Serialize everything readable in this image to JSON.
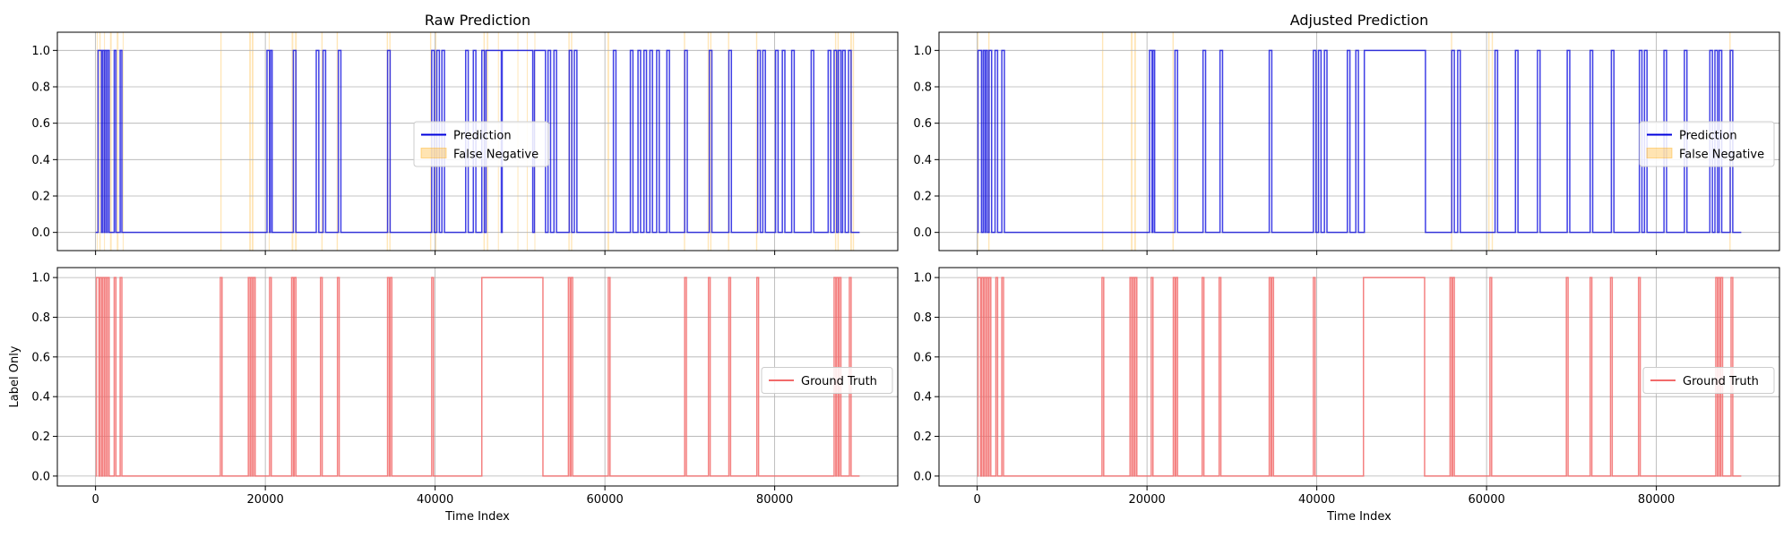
{
  "figure": {
    "x_label": "Time Index",
    "y_label": "Label Only"
  },
  "colors": {
    "prediction": "#0000dd",
    "ground_truth": "#f26b6b",
    "false_negative": "#ffa500",
    "grid": "#b0b0b0",
    "axes": "#000000"
  },
  "chart_data": [
    {
      "type": "line",
      "panel": "raw-prediction",
      "title": "Raw Prediction",
      "xlim": [
        -4500,
        94500
      ],
      "ylim": [
        -0.1,
        1.1
      ],
      "x_ticks": [
        0,
        20000,
        40000,
        60000,
        80000
      ],
      "x_tick_labels": [
        "0",
        "20000",
        "40000",
        "60000",
        "80000"
      ],
      "y_ticks": [
        0.0,
        0.2,
        0.4,
        0.6,
        0.8,
        1.0
      ],
      "y_tick_labels": [
        "0.0",
        "0.2",
        "0.4",
        "0.6",
        "0.8",
        "1.0"
      ],
      "grid": true,
      "legend_position": "center-right",
      "legend": [
        "Prediction",
        "False Negative"
      ],
      "series": [
        {
          "name": "Prediction",
          "segments": [
            [
              300,
              700
            ],
            [
              800,
              1000
            ],
            [
              1100,
              1300
            ],
            [
              1400,
              1600
            ],
            [
              2200,
              2400
            ],
            [
              2900,
              3100
            ],
            [
              20200,
              20500
            ],
            [
              20600,
              20800
            ],
            [
              23300,
              23600
            ],
            [
              26000,
              26300
            ],
            [
              26800,
              27100
            ],
            [
              28600,
              28900
            ],
            [
              34400,
              34700
            ],
            [
              39600,
              39900
            ],
            [
              40200,
              40500
            ],
            [
              40800,
              41100
            ],
            [
              43600,
              43900
            ],
            [
              44500,
              44800
            ],
            [
              45500,
              45800
            ],
            [
              46000,
              47800
            ],
            [
              47900,
              51500
            ],
            [
              51700,
              53000
            ],
            [
              53300,
              53600
            ],
            [
              54000,
              54300
            ],
            [
              55800,
              56100
            ],
            [
              56400,
              56700
            ],
            [
              61000,
              61300
            ],
            [
              63000,
              63300
            ],
            [
              63900,
              64200
            ],
            [
              64600,
              64900
            ],
            [
              65300,
              65600
            ],
            [
              66100,
              66400
            ],
            [
              67300,
              67600
            ],
            [
              69400,
              69700
            ],
            [
              72300,
              72600
            ],
            [
              74600,
              74900
            ],
            [
              78000,
              78300
            ],
            [
              78600,
              78900
            ],
            [
              80100,
              80400
            ],
            [
              80900,
              81200
            ],
            [
              82000,
              82300
            ],
            [
              84300,
              84600
            ],
            [
              86300,
              86600
            ],
            [
              87000,
              87300
            ],
            [
              87500,
              87800
            ],
            [
              88000,
              88300
            ],
            [
              88700,
              89000
            ]
          ],
          "x_end": 90000
        },
        {
          "name": "False Negative",
          "spans": [
            [
              150,
              250
            ],
            [
              450,
              600
            ],
            [
              1000,
              1100
            ],
            [
              1700,
              1900
            ],
            [
              2500,
              2700
            ],
            [
              3200,
              3300
            ],
            [
              14700,
              14850
            ],
            [
              18100,
              18300
            ],
            [
              18400,
              18600
            ],
            [
              20400,
              20500
            ],
            [
              23100,
              23300
            ],
            [
              23500,
              23700
            ],
            [
              26600,
              26750
            ],
            [
              28400,
              28550
            ],
            [
              34300,
              34450
            ],
            [
              34600,
              34750
            ],
            [
              39400,
              39550
            ],
            [
              40000,
              40150
            ],
            [
              45700,
              45850
            ],
            [
              46100,
              46250
            ],
            [
              47400,
              47500
            ],
            [
              49700,
              49800
            ],
            [
              50800,
              50900
            ],
            [
              51700,
              51800
            ],
            [
              55700,
              55850
            ],
            [
              56000,
              56150
            ],
            [
              60300,
              60500
            ],
            [
              69300,
              69450
            ],
            [
              72100,
              72250
            ],
            [
              72400,
              72550
            ],
            [
              74500,
              74650
            ],
            [
              77800,
              77950
            ],
            [
              87100,
              87250
            ],
            [
              87400,
              87550
            ],
            [
              88900,
              89100
            ],
            [
              89200,
              89350
            ]
          ]
        }
      ]
    },
    {
      "type": "line",
      "panel": "adjusted-prediction",
      "title": "Adjusted Prediction",
      "xlim": [
        -4500,
        94500
      ],
      "ylim": [
        -0.1,
        1.1
      ],
      "x_ticks": [
        0,
        20000,
        40000,
        60000,
        80000
      ],
      "x_tick_labels": [
        "0",
        "20000",
        "40000",
        "60000",
        "80000"
      ],
      "y_ticks": [
        0.0,
        0.2,
        0.4,
        0.6,
        0.8,
        1.0
      ],
      "y_tick_labels": [
        "0.0",
        "0.2",
        "0.4",
        "0.6",
        "0.8",
        "1.0"
      ],
      "grid": true,
      "legend_position": "center-right",
      "legend": [
        "Prediction",
        "False Negative"
      ],
      "series": [
        {
          "name": "Prediction",
          "segments": [
            [
              100,
              500
            ],
            [
              700,
              900
            ],
            [
              1000,
              1200
            ],
            [
              1400,
              1700
            ],
            [
              2100,
              2400
            ],
            [
              2900,
              3200
            ],
            [
              20300,
              20600
            ],
            [
              20700,
              20900
            ],
            [
              23300,
              23600
            ],
            [
              26600,
              26900
            ],
            [
              28600,
              28900
            ],
            [
              34400,
              34700
            ],
            [
              39600,
              39900
            ],
            [
              40200,
              40500
            ],
            [
              40900,
              41200
            ],
            [
              43600,
              43900
            ],
            [
              44600,
              44900
            ],
            [
              45600,
              52800
            ],
            [
              55900,
              56200
            ],
            [
              56600,
              56900
            ],
            [
              61000,
              61300
            ],
            [
              63400,
              63700
            ],
            [
              66000,
              66300
            ],
            [
              69500,
              69800
            ],
            [
              72200,
              72500
            ],
            [
              74700,
              75000
            ],
            [
              78000,
              78300
            ],
            [
              78600,
              78900
            ],
            [
              80900,
              81200
            ],
            [
              83300,
              83600
            ],
            [
              86300,
              86600
            ],
            [
              86900,
              87200
            ],
            [
              87400,
              87700
            ],
            [
              88700,
              89000
            ]
          ],
          "x_end": 90000
        },
        {
          "name": "False Negative",
          "spans": [
            [
              0,
              150
            ],
            [
              1300,
              1450
            ],
            [
              14700,
              14850
            ],
            [
              18100,
              18300
            ],
            [
              18500,
              18700
            ],
            [
              23000,
              23150
            ],
            [
              55800,
              55950
            ],
            [
              60200,
              60350
            ],
            [
              60600,
              60750
            ],
            [
              88600,
              88750
            ]
          ]
        }
      ]
    },
    {
      "type": "line",
      "panel": "ground-truth-left",
      "title": "",
      "ylabel": "Label Only",
      "xlabel": "Time Index",
      "xlim": [
        -4500,
        94500
      ],
      "ylim": [
        -0.05,
        1.05
      ],
      "x_ticks": [
        0,
        20000,
        40000,
        60000,
        80000
      ],
      "x_tick_labels": [
        "0",
        "20000",
        "40000",
        "60000",
        "80000"
      ],
      "y_ticks": [
        0.0,
        0.2,
        0.4,
        0.6,
        0.8,
        1.0
      ],
      "y_tick_labels": [
        "0.0",
        "0.2",
        "0.4",
        "0.6",
        "0.8",
        "1.0"
      ],
      "grid": true,
      "legend_position": "center-right",
      "legend": [
        "Ground Truth"
      ],
      "series": [
        {
          "name": "Ground Truth",
          "segments": [
            [
              100,
              400
            ],
            [
              500,
              700
            ],
            [
              800,
              1000
            ],
            [
              1100,
              1300
            ],
            [
              1400,
              1600
            ],
            [
              2200,
              2400
            ],
            [
              2900,
              3100
            ],
            [
              14700,
              14900
            ],
            [
              18000,
              18200
            ],
            [
              18300,
              18500
            ],
            [
              18600,
              18800
            ],
            [
              20500,
              20700
            ],
            [
              23100,
              23300
            ],
            [
              23400,
              23600
            ],
            [
              26500,
              26700
            ],
            [
              28500,
              28700
            ],
            [
              34400,
              34600
            ],
            [
              34700,
              34900
            ],
            [
              39600,
              39800
            ],
            [
              45500,
              52700
            ],
            [
              55700,
              55900
            ],
            [
              56000,
              56200
            ],
            [
              60400,
              60600
            ],
            [
              69400,
              69600
            ],
            [
              72200,
              72400
            ],
            [
              74600,
              74800
            ],
            [
              77900,
              78100
            ],
            [
              87000,
              87200
            ],
            [
              87300,
              87500
            ],
            [
              87600,
              87800
            ],
            [
              88800,
              89000
            ]
          ],
          "x_end": 90000
        }
      ]
    },
    {
      "type": "line",
      "panel": "ground-truth-right",
      "title": "",
      "xlabel": "Time Index",
      "xlim": [
        -4500,
        94500
      ],
      "ylim": [
        -0.05,
        1.05
      ],
      "x_ticks": [
        0,
        20000,
        40000,
        60000,
        80000
      ],
      "x_tick_labels": [
        "0",
        "20000",
        "40000",
        "60000",
        "80000"
      ],
      "y_ticks": [
        0.0,
        0.2,
        0.4,
        0.6,
        0.8,
        1.0
      ],
      "y_tick_labels": [
        "0.0",
        "0.2",
        "0.4",
        "0.6",
        "0.8",
        "1.0"
      ],
      "grid": true,
      "legend_position": "center-right",
      "legend": [
        "Ground Truth"
      ],
      "series": [
        {
          "name": "Ground Truth",
          "segments": [
            [
              100,
              400
            ],
            [
              500,
              700
            ],
            [
              800,
              1000
            ],
            [
              1100,
              1300
            ],
            [
              1400,
              1600
            ],
            [
              2200,
              2400
            ],
            [
              2900,
              3100
            ],
            [
              14700,
              14900
            ],
            [
              18000,
              18200
            ],
            [
              18300,
              18500
            ],
            [
              18600,
              18800
            ],
            [
              20500,
              20700
            ],
            [
              23100,
              23300
            ],
            [
              23400,
              23600
            ],
            [
              26500,
              26700
            ],
            [
              28500,
              28700
            ],
            [
              34400,
              34600
            ],
            [
              34700,
              34900
            ],
            [
              39600,
              39800
            ],
            [
              45500,
              52700
            ],
            [
              55700,
              55900
            ],
            [
              56000,
              56200
            ],
            [
              60400,
              60600
            ],
            [
              69400,
              69600
            ],
            [
              72200,
              72400
            ],
            [
              74600,
              74800
            ],
            [
              77900,
              78100
            ],
            [
              87000,
              87200
            ],
            [
              87300,
              87500
            ],
            [
              87600,
              87800
            ],
            [
              88800,
              89000
            ]
          ],
          "x_end": 90000
        }
      ]
    }
  ]
}
